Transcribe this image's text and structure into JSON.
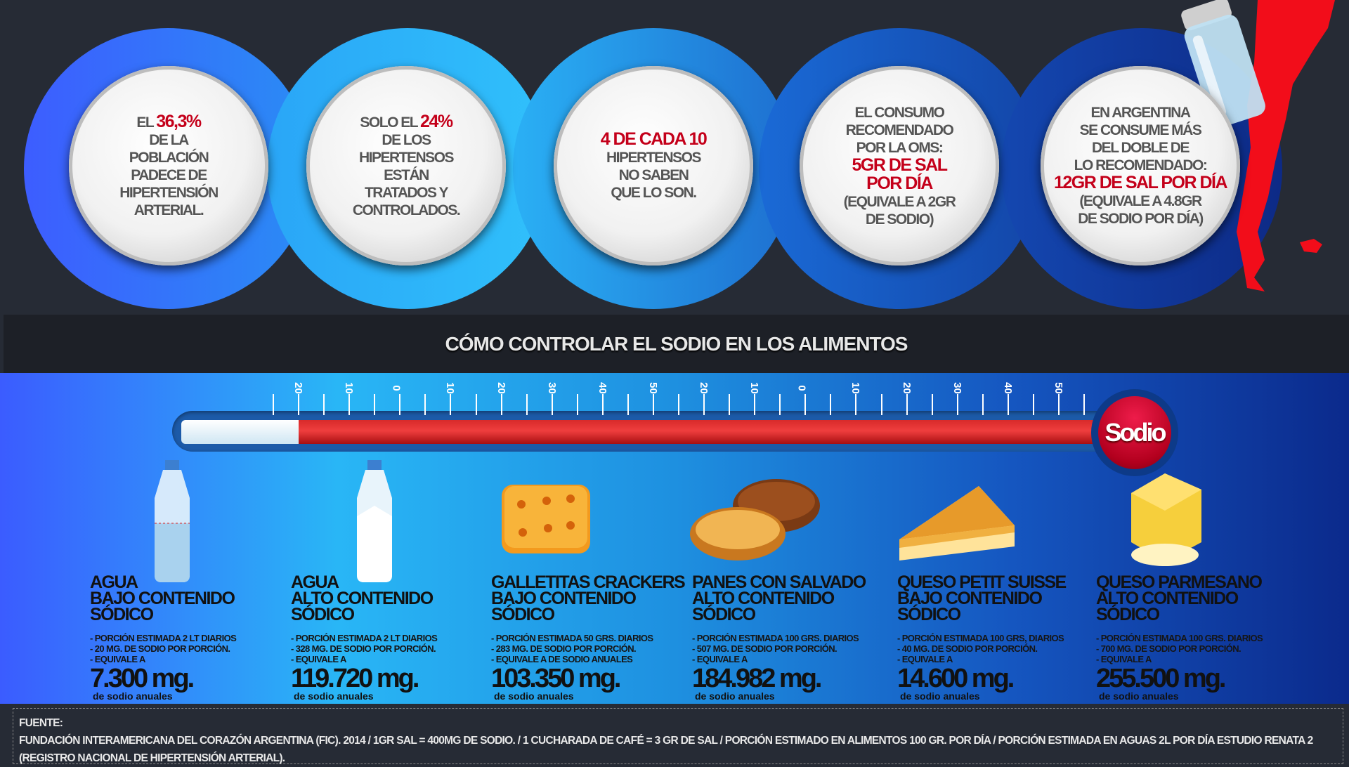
{
  "stats": [
    {
      "lines": [
        [
          {
            "text": "EL "
          },
          {
            "text": "36,3%",
            "highlight": true
          }
        ],
        [
          {
            "text": "DE LA"
          }
        ],
        [
          {
            "text": "POBLACIÓN"
          }
        ],
        [
          {
            "text": "PADECE DE"
          }
        ],
        [
          {
            "text": "HIPERTENSIÓN"
          }
        ],
        [
          {
            "text": "ARTERIAL."
          }
        ]
      ]
    },
    {
      "lines": [
        [
          {
            "text": "SOLO EL "
          },
          {
            "text": "24%",
            "highlight": true
          }
        ],
        [
          {
            "text": "DE LOS"
          }
        ],
        [
          {
            "text": "HIPERTENSOS"
          }
        ],
        [
          {
            "text": "ESTÁN"
          }
        ],
        [
          {
            "text": "TRATADOS Y"
          }
        ],
        [
          {
            "text": "CONTROLADOS."
          }
        ]
      ]
    },
    {
      "lines": [
        [
          {
            "text": "4 DE CADA 10",
            "highlight": true
          }
        ],
        [
          {
            "text": "HIPERTENSOS"
          }
        ],
        [
          {
            "text": "NO SABEN"
          }
        ],
        [
          {
            "text": "QUE LO SON."
          }
        ]
      ]
    },
    {
      "lines": [
        [
          {
            "text": "EL CONSUMO"
          }
        ],
        [
          {
            "text": "RECOMENDADO"
          }
        ],
        [
          {
            "text": "POR LA OMS:"
          }
        ],
        [
          {
            "text": "5GR DE SAL",
            "highlight": true
          }
        ],
        [
          {
            "text": "POR DÍA",
            "highlight": true
          }
        ],
        [
          {
            "text": "(EQUIVALE A 2GR"
          }
        ],
        [
          {
            "text": "DE SODIO)"
          }
        ]
      ]
    },
    {
      "lines": [
        [
          {
            "text": "EN ARGENTINA"
          }
        ],
        [
          {
            "text": "SE CONSUME MÁS"
          }
        ],
        [
          {
            "text": "DEL DOBLE DE"
          }
        ],
        [
          {
            "text": "LO RECOMENDADO:"
          }
        ],
        [
          {
            "text": "12GR DE SAL POR DÍA",
            "highlight": true
          }
        ],
        [
          {
            "text": "(EQUIVALE A 4.8GR"
          }
        ],
        [
          {
            "text": "DE SODIO POR DÍA)"
          }
        ]
      ]
    }
  ],
  "section_title": "CÓMO CONTROLAR EL SODIO EN LOS ALIMENTOS",
  "thermometer": {
    "bulb_label": "Sodio",
    "scale_labels": [
      "20",
      "10",
      "0",
      "10",
      "20",
      "30",
      "40",
      "50",
      "20",
      "10",
      "0",
      "10",
      "20",
      "30",
      "40",
      "50"
    ],
    "fill_fraction": 0.87
  },
  "foods": [
    {
      "name1": "AGUA",
      "name2": "BAJO CONTENIDO SÓDICO",
      "details": [
        "- PORCIÓN ESTIMADA 2 LT DIARIOS",
        "- 20 MG. DE SODIO POR PORCIÓN.",
        "- EQUIVALE A"
      ],
      "amount": "7.300 mg.",
      "unit": "de sodio anuales",
      "icon": "water-bottle-icon"
    },
    {
      "name1": "AGUA",
      "name2": "ALTO CONTENIDO SÓDICO",
      "details": [
        "- PORCIÓN ESTIMADA 2 LT DIARIOS",
        "- 328 MG. DE SODIO POR PORCIÓN.",
        "- EQUIVALE A"
      ],
      "amount": "119.720 mg.",
      "unit": "de sodio anuales",
      "icon": "water-bottle-icon"
    },
    {
      "name1": "GALLETITAS CRACKERS",
      "name2": "BAJO CONTENIDO SÓDICO",
      "details": [
        "- PORCIÓN ESTIMADA 50 GRS. DIARIOS",
        "- 283 MG. DE SODIO POR PORCIÓN.",
        "- EQUIVALE A DE SODIO ANUALES"
      ],
      "amount": "103.350 mg.",
      "unit": "de sodio anuales",
      "icon": "cracker-icon"
    },
    {
      "name1": "PANES CON SALVADO",
      "name2": "ALTO CONTENIDO SÓDICO",
      "details": [
        "- PORCIÓN ESTIMADA 100 GRS. DIARIOS",
        "- 507 MG. DE SODIO POR PORCIÓN.",
        "- EQUIVALE A"
      ],
      "amount": "184.982 mg.",
      "unit": "de sodio anuales",
      "icon": "bread-icon"
    },
    {
      "name1": "QUESO PETIT SUISSE",
      "name2": "BAJO CONTENIDO SÓDICO",
      "details": [
        "- PORCIÓN ESTIMADA 100 GRS, DIARIOS",
        "- 40 MG. DE SODIO POR PORCIÓN.",
        "- EQUIVALE A"
      ],
      "amount": "14.600 mg.",
      "unit": "de sodio anuales",
      "icon": "cheese-wedge-icon"
    },
    {
      "name1": "QUESO PARMESANO",
      "name2": "ALTO CONTENIDO SÓDICO",
      "details": [
        "- PORCIÓN ESTIMADA 100 GRS. DIARIOS",
        "- 700 MG. DE SODIO POR PORCIÓN.",
        "- EQUIVALE A"
      ],
      "amount": "255.500 mg.",
      "unit": "de sodio anuales",
      "icon": "grated-cheese-icon"
    }
  ],
  "footer": {
    "label": "FUENTE:",
    "text": "FUNDACIÓN INTERAMERICANA DEL CORAZÓN ARGENTINA (FIC). 2014 / 1GR SAL = 400MG DE SODIO. / 1 CUCHARADA DE CAFÉ = 3 GR DE SAL / PORCIÓN ESTIMADO EN ALIMENTOS 100 GR. POR DÍA / PORCIÓN ESTIMADA EN AGUAS 2L POR DÍA ESTUDIO RENATA 2 (REGISTRO NACIONAL DE HIPERTENSIÓN ARTERIAL)."
  },
  "colors": {
    "highlight": "#c4001a",
    "background": "#262b35",
    "banner": "#1d2027"
  }
}
